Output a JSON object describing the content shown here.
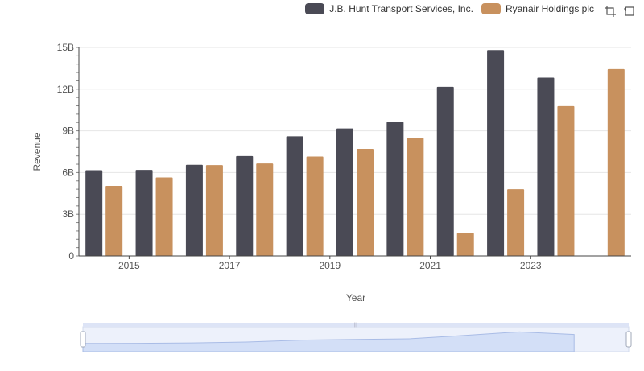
{
  "chart_data": {
    "type": "bar",
    "title": "",
    "xlabel": "Year",
    "ylabel": "Revenue",
    "ylim": [
      0,
      15000000000
    ],
    "y_ticks": [
      "0",
      "3B",
      "6B",
      "9B",
      "12B",
      "15B"
    ],
    "x_tick_labels": [
      "2015",
      "2017",
      "2019",
      "2021",
      "2023"
    ],
    "categories": [
      "2014",
      "2015",
      "2016",
      "2017",
      "2018",
      "2019",
      "2020",
      "2021",
      "2022",
      "2023",
      "2024"
    ],
    "series": [
      {
        "name": "J.B. Hunt Transport Services, Inc.",
        "color": "#4a4a55",
        "values": [
          6170000000,
          6190000000,
          6560000000,
          7190000000,
          8610000000,
          9170000000,
          9640000000,
          12170000000,
          14810000000,
          12830000000,
          null
        ]
      },
      {
        "name": "Ryanair Holdings plc",
        "color": "#c8915e",
        "values": [
          5040000000,
          5650000000,
          6540000000,
          6650000000,
          7150000000,
          7700000000,
          8490000000,
          1640000000,
          4800000000,
          10780000000,
          13440000000
        ]
      }
    ],
    "legend_position": "top-right",
    "grid": true
  },
  "toolbox": {
    "zoom_icon": "zoom-icon",
    "restore_icon": "restore-icon"
  }
}
